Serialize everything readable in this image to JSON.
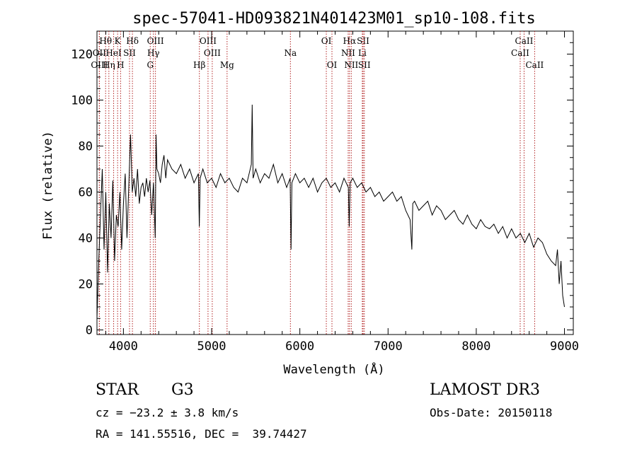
{
  "chart_data": {
    "type": "line",
    "title": "spec-57041-HD093821N401423M01_sp10-108.fits",
    "xlabel": "Wavelength (Å)",
    "ylabel": "Flux (relative)",
    "xlim": [
      3700,
      9100
    ],
    "ylim": [
      -2,
      130
    ],
    "xticks": [
      4000,
      5000,
      6000,
      7000,
      8000,
      9000
    ],
    "yticks": [
      0,
      20,
      40,
      60,
      80,
      100,
      120
    ],
    "series": [
      {
        "name": "flux",
        "x": [
          3700,
          3720,
          3740,
          3760,
          3780,
          3800,
          3820,
          3840,
          3860,
          3880,
          3900,
          3920,
          3940,
          3960,
          3980,
          4000,
          4020,
          4040,
          4060,
          4080,
          4100,
          4120,
          4140,
          4160,
          4180,
          4200,
          4220,
          4240,
          4260,
          4280,
          4300,
          4320,
          4340,
          4360,
          4370,
          4380,
          4400,
          4420,
          4440,
          4460,
          4480,
          4500,
          4550,
          4600,
          4650,
          4700,
          4750,
          4800,
          4850,
          4860,
          4870,
          4900,
          4950,
          5000,
          5050,
          5100,
          5150,
          5200,
          5250,
          5300,
          5350,
          5400,
          5450,
          5460,
          5470,
          5500,
          5550,
          5600,
          5650,
          5700,
          5750,
          5800,
          5850,
          5890,
          5900,
          5910,
          5950,
          6000,
          6050,
          6100,
          6150,
          6200,
          6250,
          6300,
          6350,
          6400,
          6450,
          6500,
          6550,
          6560,
          6570,
          6600,
          6650,
          6700,
          6750,
          6800,
          6850,
          6900,
          6950,
          7000,
          7050,
          7100,
          7150,
          7200,
          7250,
          7270,
          7280,
          7300,
          7350,
          7400,
          7450,
          7500,
          7550,
          7600,
          7650,
          7700,
          7750,
          7800,
          7850,
          7900,
          7950,
          8000,
          8050,
          8100,
          8150,
          8200,
          8250,
          8300,
          8350,
          8400,
          8450,
          8500,
          8550,
          8600,
          8650,
          8700,
          8750,
          8800,
          8850,
          8900,
          8920,
          8940,
          8960,
          8980,
          9000
        ],
        "y": [
          5,
          30,
          50,
          70,
          35,
          60,
          25,
          55,
          40,
          65,
          30,
          50,
          45,
          60,
          35,
          55,
          68,
          40,
          62,
          85,
          60,
          66,
          58,
          70,
          55,
          62,
          64,
          58,
          66,
          60,
          65,
          50,
          64,
          40,
          85,
          70,
          68,
          64,
          72,
          76,
          66,
          74,
          70,
          68,
          72,
          66,
          70,
          64,
          68,
          45,
          66,
          70,
          64,
          66,
          62,
          68,
          64,
          66,
          62,
          60,
          66,
          64,
          72,
          98,
          66,
          70,
          64,
          68,
          66,
          72,
          64,
          68,
          62,
          66,
          35,
          64,
          68,
          64,
          66,
          62,
          66,
          60,
          64,
          66,
          62,
          64,
          60,
          66,
          62,
          45,
          64,
          66,
          62,
          64,
          60,
          62,
          58,
          60,
          56,
          58,
          60,
          56,
          58,
          52,
          48,
          35,
          55,
          56,
          52,
          54,
          56,
          50,
          54,
          52,
          48,
          50,
          52,
          48,
          46,
          50,
          46,
          44,
          48,
          45,
          44,
          46,
          42,
          45,
          40,
          44,
          40,
          42,
          38,
          42,
          36,
          40,
          38,
          33,
          30,
          28,
          35,
          20,
          30,
          15,
          10
        ]
      }
    ],
    "line_markers": [
      {
        "label": "Hθ",
        "x": 3798,
        "row": 1
      },
      {
        "label": "OII",
        "x": 3727,
        "row": 2
      },
      {
        "label": "OIII",
        "x": 3727,
        "row": 3
      },
      {
        "label": "K",
        "x": 3934,
        "row": 1
      },
      {
        "label": "HeI",
        "x": 3889,
        "row": 2
      },
      {
        "label": "Hη",
        "x": 3835,
        "row": 3
      },
      {
        "label": "Hδ",
        "x": 4102,
        "row": 1
      },
      {
        "label": "SII",
        "x": 4069,
        "row": 2
      },
      {
        "label": "H",
        "x": 3968,
        "row": 3
      },
      {
        "label": "OIII",
        "x": 4363,
        "row": 1
      },
      {
        "label": "Hγ",
        "x": 4340,
        "row": 2
      },
      {
        "label": "G",
        "x": 4304,
        "row": 3
      },
      {
        "label": "OIII",
        "x": 4959,
        "row": 1
      },
      {
        "label": "OIII",
        "x": 5007,
        "row": 2
      },
      {
        "label": "Hβ",
        "x": 4861,
        "row": 3
      },
      {
        "label": "Mg",
        "x": 5175,
        "row": 3
      },
      {
        "label": "Na",
        "x": 5893,
        "row": 2
      },
      {
        "label": "OI",
        "x": 6300,
        "row": 1
      },
      {
        "label": "OI",
        "x": 6364,
        "row": 3
      },
      {
        "label": "Hα",
        "x": 6563,
        "row": 1
      },
      {
        "label": "NII",
        "x": 6548,
        "row": 2
      },
      {
        "label": "NII",
        "x": 6583,
        "row": 3
      },
      {
        "label": "SII",
        "x": 6717,
        "row": 1
      },
      {
        "label": "Li",
        "x": 6708,
        "row": 2
      },
      {
        "label": "SII",
        "x": 6731,
        "row": 3
      },
      {
        "label": "CaII",
        "x": 8542,
        "row": 1
      },
      {
        "label": "CaII",
        "x": 8498,
        "row": 2
      },
      {
        "label": "CaII",
        "x": 8662,
        "row": 3
      }
    ]
  },
  "info": {
    "class_label": "STAR",
    "subclass": "G3",
    "survey": "LAMOST DR3",
    "redshift": "cz = −23.2 ± 3.8 km/s",
    "obs_date": "Obs-Date: 20150118",
    "coords": "RA = 141.55516, DEC =  39.74427"
  }
}
